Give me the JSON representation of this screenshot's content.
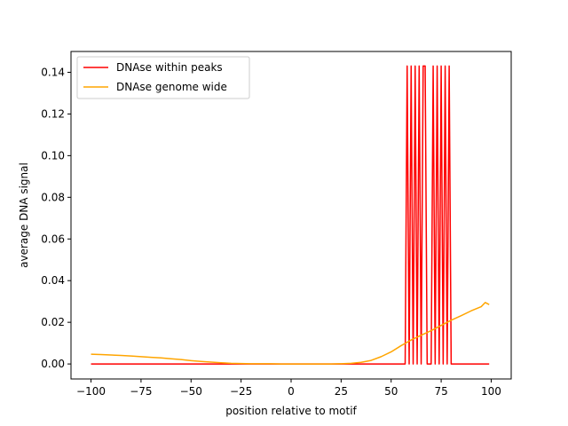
{
  "chart_data": {
    "type": "line",
    "title": "",
    "xlabel": "position relative to motif",
    "ylabel": "average DNA signal",
    "xlim": [
      -110,
      110
    ],
    "ylim": [
      -0.0072,
      0.15
    ],
    "xticks": [
      -100,
      -75,
      -50,
      -25,
      0,
      25,
      50,
      75,
      100
    ],
    "yticks": [
      0.0,
      0.02,
      0.04,
      0.06,
      0.08,
      0.1,
      0.12,
      0.14
    ],
    "xtick_labels": [
      "−100",
      "−75",
      "−50",
      "−25",
      "0",
      "25",
      "50",
      "75",
      "100"
    ],
    "ytick_labels": [
      "0.00",
      "0.02",
      "0.04",
      "0.06",
      "0.08",
      "0.10",
      "0.12",
      "0.14"
    ],
    "grid": false,
    "legend_position": "top-left",
    "series": [
      {
        "name": "DNAse within peaks",
        "color": "#ff0000",
        "x": [
          -100,
          57,
          58,
          59,
          60,
          61,
          62,
          63,
          64,
          65,
          66,
          67,
          68,
          69,
          70,
          71,
          72,
          73,
          74,
          75,
          76,
          77,
          78,
          79,
          80,
          99
        ],
        "y": [
          0,
          0,
          0.143,
          0,
          0.143,
          0,
          0.143,
          0,
          0.143,
          0,
          0.143,
          0.143,
          0,
          0,
          0,
          0.143,
          0,
          0.143,
          0,
          0.143,
          0,
          0.143,
          0,
          0.143,
          0,
          0
        ]
      },
      {
        "name": "DNAse genome wide",
        "color": "#ffa500",
        "x": [
          -100,
          -95,
          -90,
          -85,
          -80,
          -75,
          -70,
          -65,
          -60,
          -55,
          -50,
          -45,
          -40,
          -35,
          -30,
          -25,
          -20,
          -15,
          -10,
          -5,
          0,
          5,
          10,
          15,
          20,
          25,
          30,
          35,
          40,
          45,
          50,
          55,
          60,
          65,
          70,
          75,
          80,
          85,
          90,
          95,
          97,
          99
        ],
        "y": [
          0.0047,
          0.0045,
          0.0043,
          0.0041,
          0.0038,
          0.0035,
          0.0032,
          0.0029,
          0.0025,
          0.0021,
          0.0016,
          0.0012,
          0.0009,
          0.0006,
          0.0003,
          0.0002,
          0.0001,
          0.0001,
          0.0001,
          0.0,
          0.0,
          0.0,
          0.0,
          0.0,
          0.0,
          0.0001,
          0.0003,
          0.0008,
          0.0017,
          0.0035,
          0.0058,
          0.0088,
          0.0115,
          0.0138,
          0.016,
          0.0185,
          0.021,
          0.0232,
          0.0255,
          0.0275,
          0.0295,
          0.0285
        ]
      }
    ]
  }
}
